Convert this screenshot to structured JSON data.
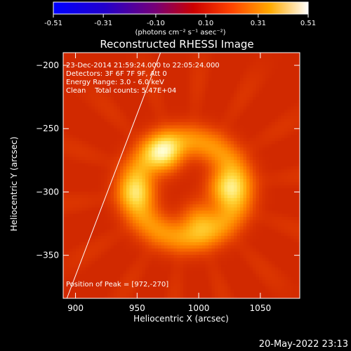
{
  "colorbar": {
    "ticks": [
      "-0.51",
      "-0.31",
      "-0.10",
      "0.10",
      "0.31",
      "0.51"
    ],
    "tick_values": [
      -0.51,
      -0.31,
      -0.1,
      0.1,
      0.31,
      0.51
    ],
    "range": [
      -0.51,
      0.51
    ],
    "unit_label": "(photons cm⁻² s⁻¹ asec⁻²)"
  },
  "chart_data": {
    "type": "heatmap",
    "title": "Reconstructed RHESSI Image",
    "xlabel": "Heliocentric X (arcsec)",
    "ylabel": "Heliocentric Y (arcsec)",
    "xlim": [
      890,
      1082
    ],
    "ylim": [
      -384,
      -190
    ],
    "xticks": [
      900,
      950,
      1000,
      1050
    ],
    "yticks": [
      -200,
      -250,
      -300,
      -350
    ],
    "annotations": [
      "23-Dec-2014 21:59:24.000 to 22:05:24.000",
      "Detectors: 3F 6F 7F 9F, Att 0",
      "Energy Range: 3.0 - 6.0 keV",
      "Clean    Total counts: 5.47E+04"
    ],
    "peak_label": "Position of Peak = [972,-270]",
    "peak": [
      972,
      -270
    ],
    "sources": [
      {
        "x": 972,
        "y": -270,
        "intensity": 0.51
      },
      {
        "x": 1022,
        "y": -297,
        "intensity": 0.45
      },
      {
        "x": 950,
        "y": -300,
        "intensity": 0.32
      },
      {
        "x": 1000,
        "y": -322,
        "intensity": 0.3
      }
    ],
    "limb_line": [
      [
        893,
        -384
      ],
      [
        969,
        -190
      ]
    ]
  },
  "footer_date": "20-May-2022 23:13"
}
